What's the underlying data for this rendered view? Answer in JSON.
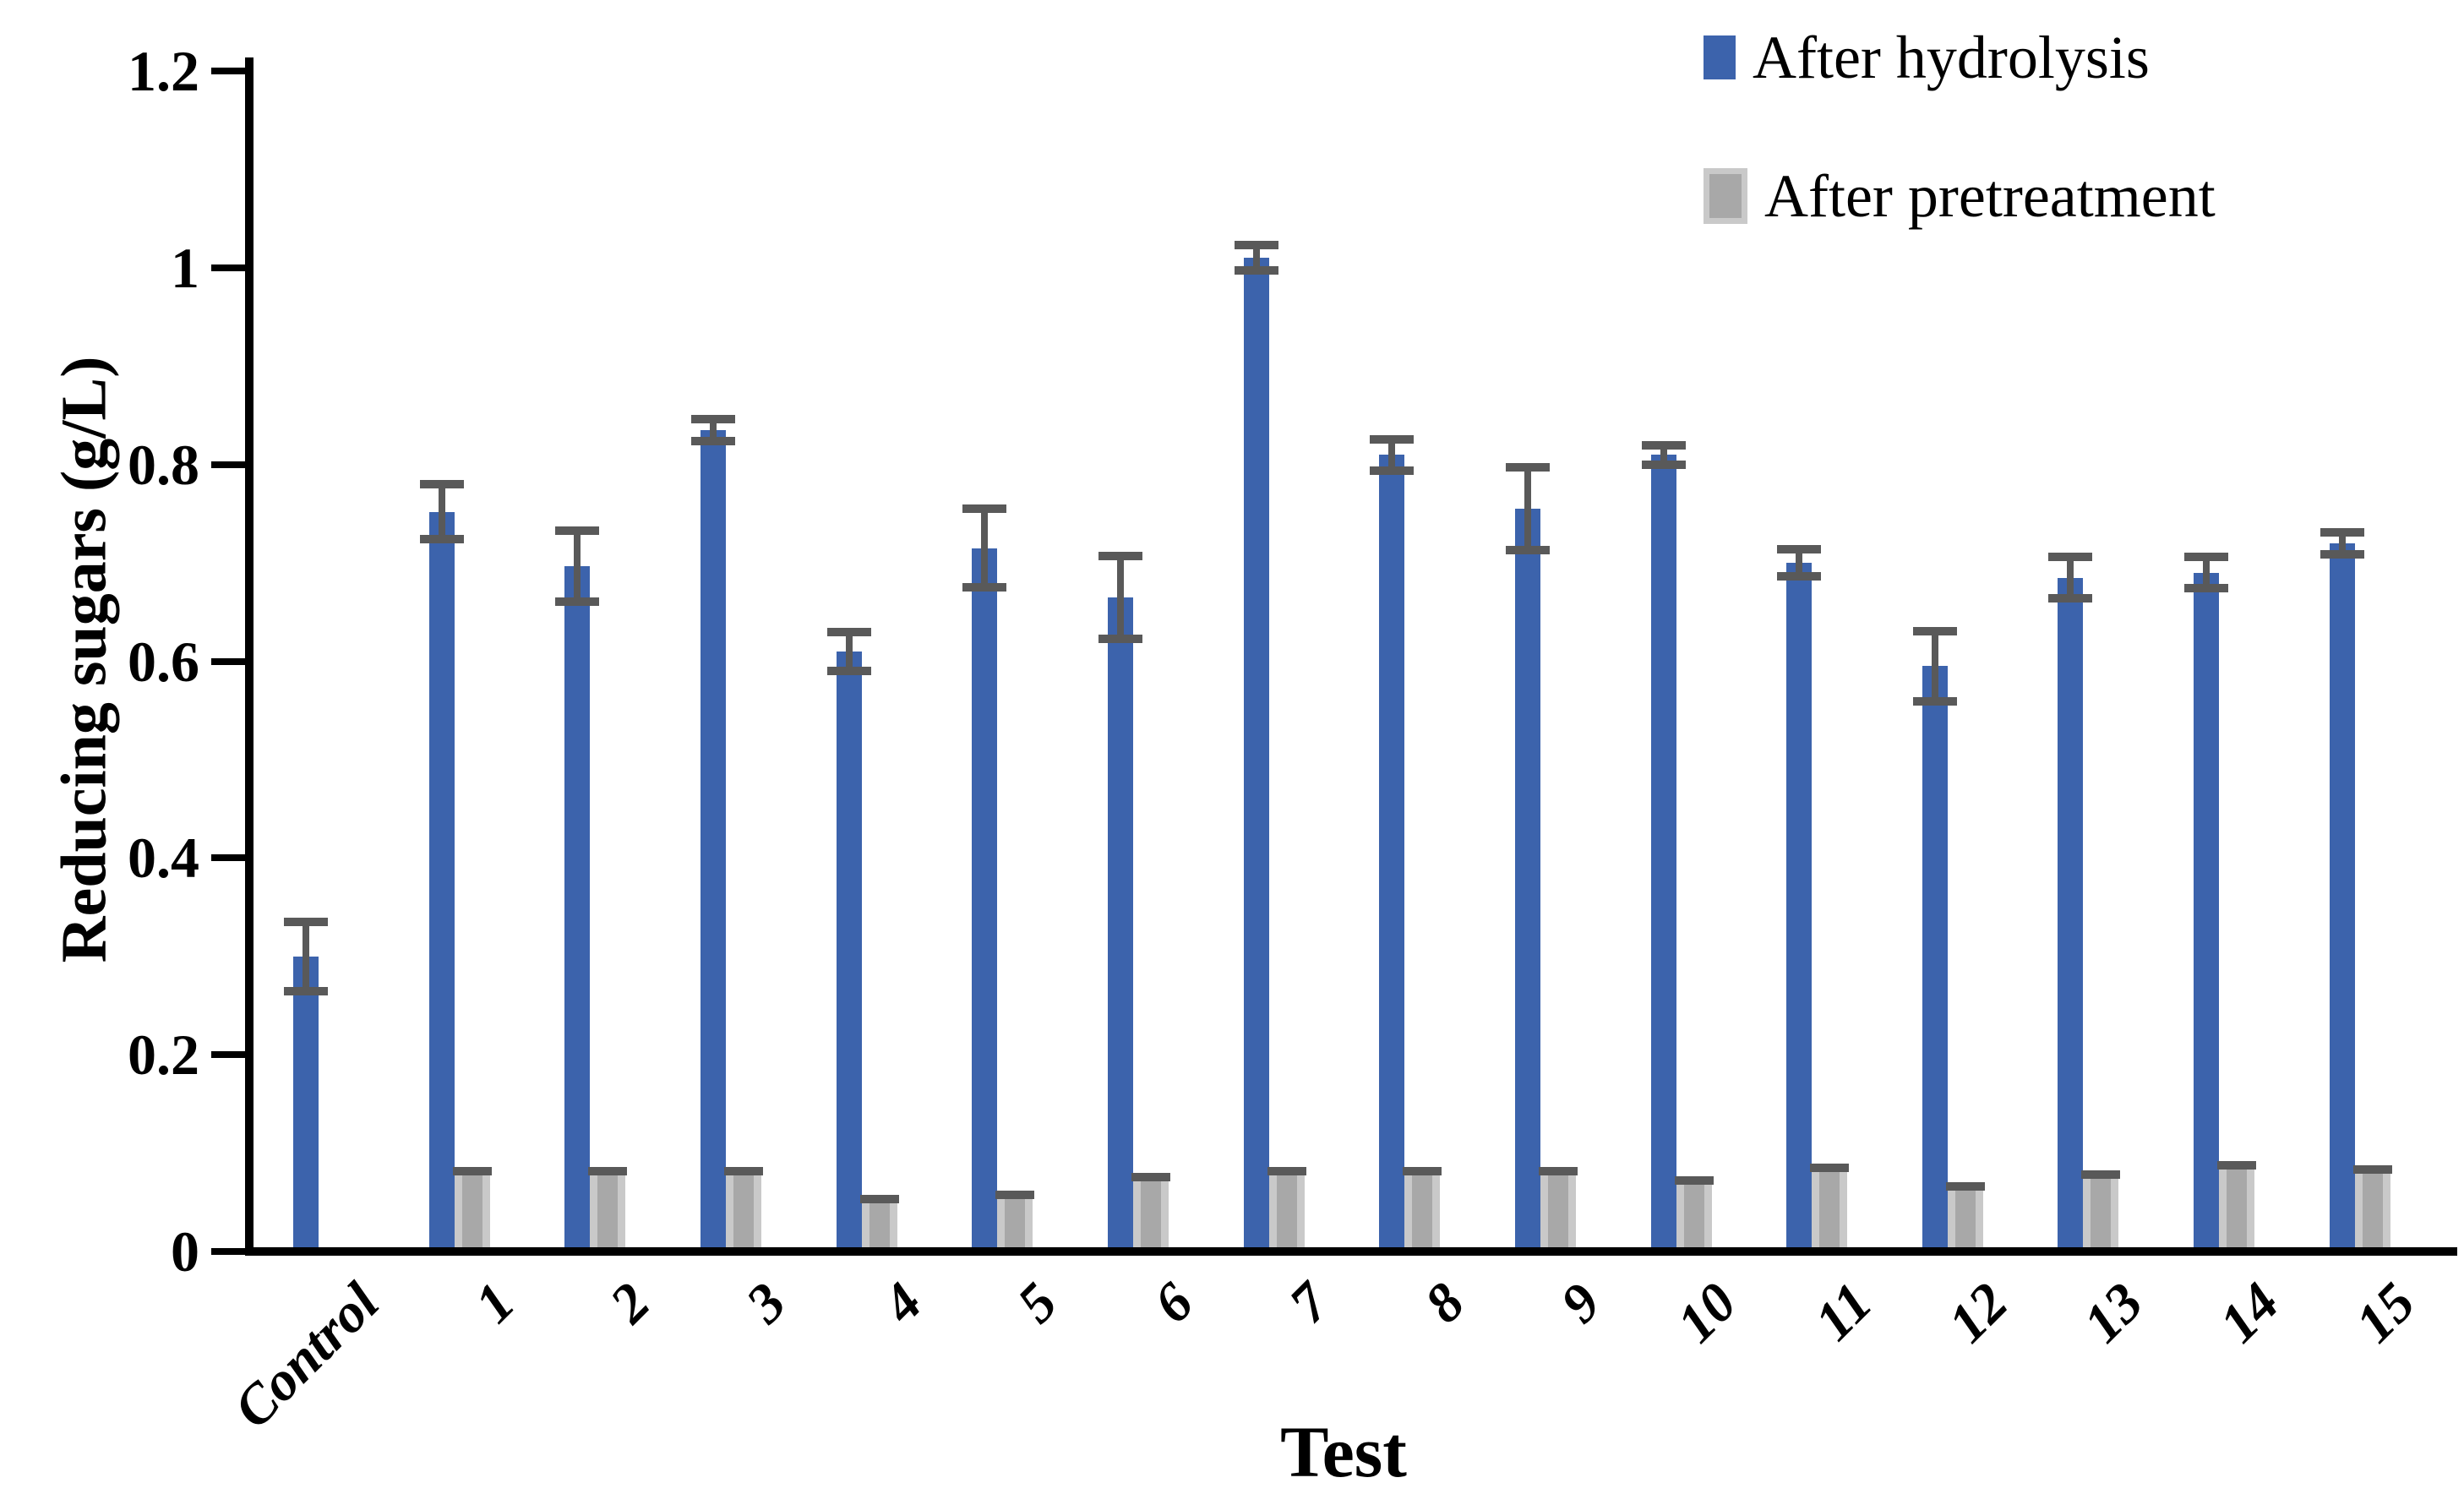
{
  "chart_data": {
    "type": "bar",
    "title": "",
    "xlabel": "Test",
    "ylabel": "Reducing sugars (g/L)",
    "ylim": [
      0,
      1.2
    ],
    "ytick_step": 0.2,
    "ytick_labels": [
      "0",
      "0.2",
      "0.4",
      "0.6",
      "0.8",
      "1",
      "1.2"
    ],
    "grid": false,
    "legend_position": "top-right",
    "categories": [
      "Control",
      "1",
      "2",
      "3",
      "4",
      "5",
      "6",
      "7",
      "8",
      "9",
      "10",
      "11",
      "12",
      "13",
      "14",
      "15"
    ],
    "series": [
      {
        "name": "After hydrolysis",
        "color": "#3C63AC",
        "values": [
          0.3,
          0.752,
          0.697,
          0.835,
          0.61,
          0.715,
          0.665,
          1.01,
          0.81,
          0.755,
          0.81,
          0.7,
          0.595,
          0.685,
          0.69,
          0.72
        ],
        "errors": [
          0.035,
          0.028,
          0.036,
          0.011,
          0.02,
          0.04,
          0.042,
          0.013,
          0.016,
          0.042,
          0.01,
          0.014,
          0.036,
          0.021,
          0.016,
          0.011
        ]
      },
      {
        "name": "After pretreatment",
        "color": "#A8A8A8",
        "edge_color": "#C9C9C9",
        "values": [
          null,
          0.077,
          0.077,
          0.077,
          0.049,
          0.053,
          0.071,
          0.077,
          0.077,
          0.077,
          0.068,
          0.081,
          0.062,
          0.074,
          0.083,
          0.079
        ],
        "errors": [
          null,
          0.004,
          0.004,
          0.004,
          0.004,
          0.004,
          0.004,
          0.004,
          0.004,
          0.004,
          0.004,
          0.004,
          0.004,
          0.004,
          0.004,
          0.004
        ]
      }
    ],
    "error_bar_color": "#595959"
  }
}
